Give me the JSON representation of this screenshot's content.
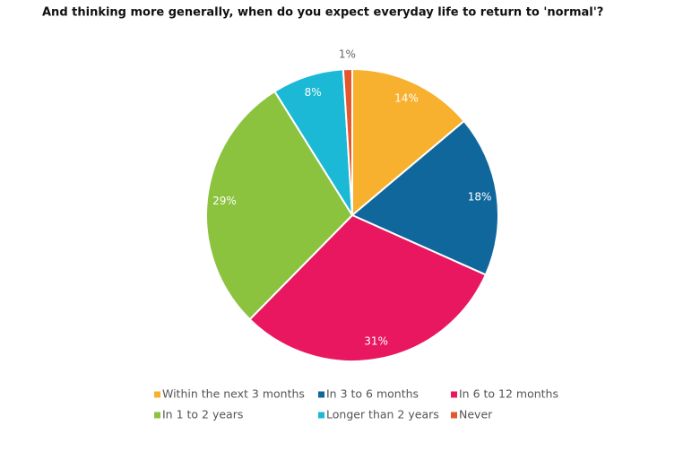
{
  "chart_data": {
    "type": "pie",
    "title": "And thinking more generally, when do you expect everyday life to return to 'normal'?",
    "categories": [
      "Within the next 3 months",
      "In 3 to 6 months",
      "In 6 to 12 months",
      "In 1 to 2 years",
      "Longer than 2 years",
      "Never"
    ],
    "values": [
      14,
      18,
      31,
      29,
      8,
      1
    ],
    "value_labels": [
      "14%",
      "18%",
      "31%",
      "29%",
      "8%",
      "1%"
    ],
    "colors": [
      "#f7b12f",
      "#10679b",
      "#e9175f",
      "#8bc33f",
      "#1cb9d6",
      "#e4572e"
    ],
    "legend": "bottom"
  }
}
